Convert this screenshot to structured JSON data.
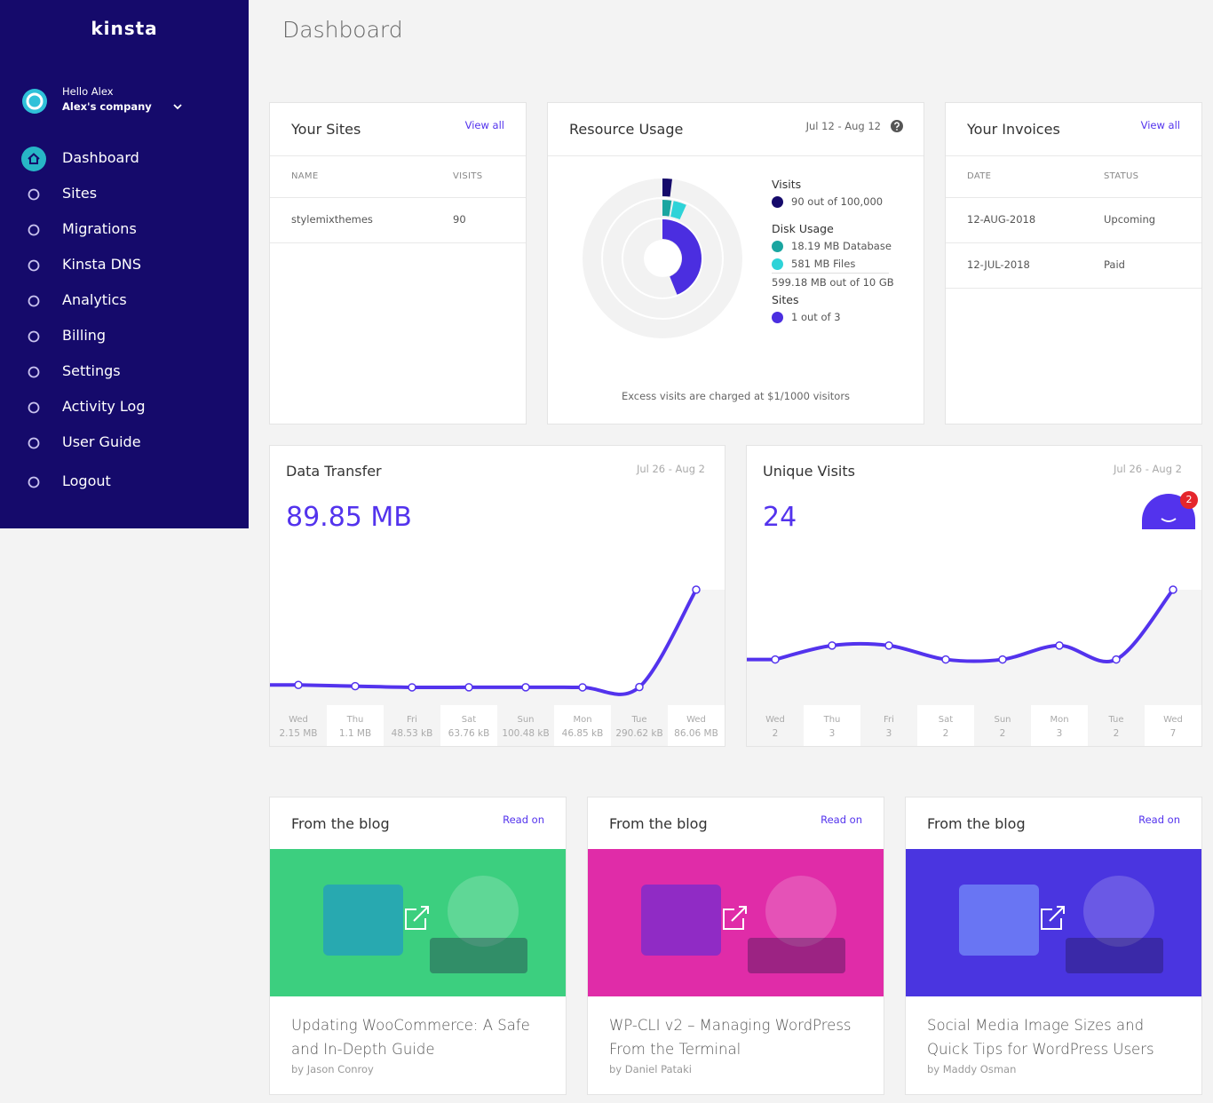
{
  "sidebar": {
    "logo": "kinsta",
    "greeting": "Hello Alex",
    "company": "Alex's company",
    "nav": [
      "Dashboard",
      "Sites",
      "Migrations",
      "Kinsta DNS",
      "Analytics",
      "Billing",
      "Settings",
      "Activity Log",
      "User Guide",
      "Logout"
    ]
  },
  "page_title": "Dashboard",
  "your_sites": {
    "title": "Your Sites",
    "link": "View all",
    "columns": [
      "NAME",
      "VISITS"
    ],
    "rows": [
      [
        "stylemixthemes",
        90
      ]
    ]
  },
  "resource_usage": {
    "title": "Resource Usage",
    "date_range": "Jul 12 - Aug 12",
    "sections": [
      {
        "label": "Visits",
        "items": [
          "90 out of 100,000"
        ]
      },
      {
        "label": "Disk Usage",
        "items": [
          "18.19 MB Database",
          "581 MB Files"
        ],
        "total": "599.18 MB out of 10 GB"
      },
      {
        "label": "Sites",
        "items": [
          "1 out of 3"
        ]
      }
    ],
    "note": "Excess visits are charged at $1/1000 visitors"
  },
  "your_invoices": {
    "title": "Your Invoices",
    "link": "View all",
    "columns": [
      "DATE",
      "STATUS"
    ],
    "rows": [
      [
        "12-AUG-2018",
        "Upcoming"
      ],
      [
        "12-JUL-2018",
        "Paid"
      ]
    ]
  },
  "chart_data": [
    {
      "type": "line",
      "title": "Data Transfer",
      "subtitle": "Jul 26 - Aug 2",
      "total": "89.85 MB",
      "categories": [
        "Wed",
        "Thu",
        "Fri",
        "Sat",
        "Sun",
        "Mon",
        "Tue",
        "Wed"
      ],
      "values": [
        2150,
        1100,
        48.53,
        63.76,
        100.48,
        46.85,
        290.62,
        86060
      ],
      "value_labels": [
        "2.15 MB",
        "1.1 MB",
        "48.53 kB",
        "63.76 kB",
        "100.48 kB",
        "46.85 kB",
        "290.62 kB",
        "86.06 MB"
      ],
      "color": "#5333ed"
    },
    {
      "type": "line",
      "title": "Unique Visits",
      "subtitle": "Jul 26 - Aug 2",
      "total": 24,
      "categories": [
        "Wed",
        "Thu",
        "Fri",
        "Sat",
        "Sun",
        "Mon",
        "Tue",
        "Wed"
      ],
      "values": [
        2,
        3,
        3,
        2,
        2,
        3,
        2,
        7
      ],
      "color": "#5333ed"
    }
  ],
  "chat_badge": 2,
  "blog": [
    {
      "heading": "From the blog",
      "link": "Read on",
      "title": "Updating WooCommerce: A Safe and In-Depth Guide",
      "author": "by Jason Conroy"
    },
    {
      "heading": "From the blog",
      "link": "Read on",
      "title": "WP-CLI v2 – Managing WordPress From the Terminal",
      "author": "by Daniel Pataki"
    },
    {
      "heading": "From the blog",
      "link": "Read on",
      "title": "Social Media Image Sizes and Quick Tips for WordPress Users",
      "author": "by Maddy Osman"
    }
  ]
}
